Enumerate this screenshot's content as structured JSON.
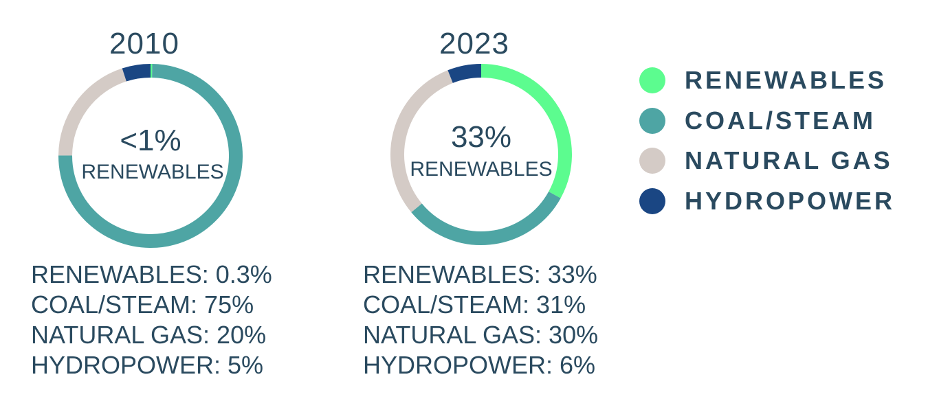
{
  "chart_data": [
    {
      "type": "pie",
      "title": "2010",
      "center_value": "<1%",
      "center_label": "RENEWABLES",
      "categories": [
        "RENEWABLES",
        "COAL/STEAM",
        "NATURAL GAS",
        "HYDROPOWER"
      ],
      "values": [
        0.3,
        75,
        20,
        5
      ],
      "stat_lines": [
        "RENEWABLES: 0.3%",
        "COAL/STEAM: 75%",
        "NATURAL GAS: 20%",
        "HYDROPOWER: 5%"
      ]
    },
    {
      "type": "pie",
      "title": "2023",
      "center_value": "33%",
      "center_label": "RENEWABLES",
      "categories": [
        "RENEWABLES",
        "COAL/STEAM",
        "NATURAL GAS",
        "HYDROPOWER"
      ],
      "values": [
        33,
        31,
        30,
        6
      ],
      "stat_lines": [
        "RENEWABLES: 33%",
        "COAL/STEAM: 31%",
        "NATURAL GAS: 30%",
        "HYDROPOWER: 6%"
      ]
    }
  ],
  "legend": [
    {
      "label": "RENEWABLES",
      "color": "#5cfc8f"
    },
    {
      "label": "COAL/STEAM",
      "color": "#4ea5a4"
    },
    {
      "label": "NATURAL GAS",
      "color": "#d4cbc6"
    },
    {
      "label": "HYDROPOWER",
      "color": "#1a4683"
    }
  ]
}
